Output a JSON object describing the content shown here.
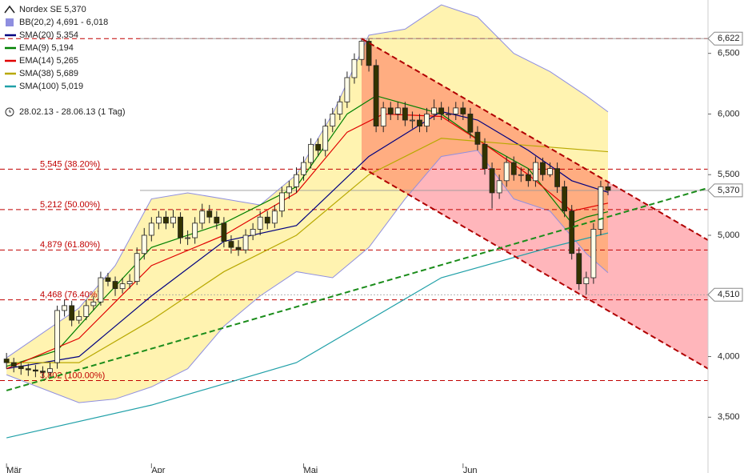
{
  "chart_data": {
    "type": "candlestick",
    "title": "Nordex SE 5,370",
    "subtitle": "28.02.13 - 28.06.13 (1 Tag)",
    "up_color": "#fffde8",
    "down_color": "#333300",
    "xlim": [
      -0.9,
      96.8
    ],
    "ylim": [
      3040,
      6940
    ],
    "xticks": [
      {
        "value": 0,
        "label": "Mär"
      },
      {
        "value": 20,
        "label": "Apr"
      },
      {
        "value": 41,
        "label": "Mai"
      },
      {
        "value": 63,
        "label": "Jun"
      }
    ],
    "yticks": [
      {
        "value": 3500,
        "label": "3,500"
      },
      {
        "value": 4000,
        "label": "4,000"
      },
      {
        "value": 5000,
        "label": "5,000"
      },
      {
        "value": 5500,
        "label": "5,500"
      },
      {
        "value": 6000,
        "label": "6,000"
      },
      {
        "value": 6500,
        "label": "6,500"
      }
    ],
    "open": [
      3980,
      3950,
      3920,
      3900,
      3890,
      3880,
      3870,
      3950,
      4380,
      4420,
      4300,
      4330,
      4420,
      4450,
      4650,
      4620,
      4560,
      4600,
      4620,
      4850,
      5000,
      5100,
      5150,
      5100,
      5150,
      4980,
      4980,
      5100,
      5200,
      5150,
      5100,
      4950,
      4900,
      4880,
      5000,
      5050,
      5150,
      5100,
      5200,
      5350,
      5400,
      5500,
      5600,
      5750,
      5700,
      5900,
      6000,
      6100,
      6300,
      6450,
      6600,
      6400,
      5900,
      6050,
      6000,
      6050,
      5950,
      5950,
      5900,
      6000,
      6050,
      6000,
      6000,
      6050,
      6000,
      5850,
      5750,
      5550,
      5350,
      5450,
      5600,
      5500,
      5500,
      5450,
      5600,
      5500,
      5550,
      5400,
      5200,
      4850,
      4600,
      4650,
      5050,
      5400
    ],
    "high": [
      4030,
      3990,
      3960,
      3940,
      3930,
      3920,
      3950,
      4420,
      4470,
      4460,
      4380,
      4470,
      4500,
      4700,
      4690,
      4660,
      4650,
      4680,
      4900,
      5060,
      5150,
      5200,
      5200,
      5210,
      5190,
      5040,
      5150,
      5260,
      5250,
      5200,
      5150,
      5000,
      4960,
      5050,
      5100,
      5200,
      5200,
      5250,
      5400,
      5450,
      5560,
      5650,
      5800,
      5800,
      5960,
      6050,
      6150,
      6350,
      6500,
      6622,
      6620,
      6450,
      6100,
      6100,
      6100,
      6100,
      6020,
      6000,
      6050,
      6120,
      6100,
      6060,
      6100,
      6100,
      6050,
      5900,
      5800,
      5600,
      5500,
      5650,
      5650,
      5560,
      5550,
      5650,
      5640,
      5600,
      5600,
      5450,
      5250,
      4900,
      4700,
      5100,
      5450,
      5430
    ],
    "low": [
      3900,
      3870,
      3850,
      3840,
      3830,
      3820,
      3820,
      3900,
      4330,
      4250,
      4270,
      4300,
      4380,
      4420,
      4580,
      4500,
      4520,
      4560,
      4590,
      4800,
      4950,
      5050,
      5050,
      5060,
      4930,
      4920,
      4930,
      5050,
      5100,
      5050,
      4900,
      4850,
      4830,
      4850,
      4960,
      5000,
      5050,
      5060,
      5150,
      5300,
      5350,
      5450,
      5550,
      5650,
      5650,
      5850,
      5950,
      6050,
      6250,
      6400,
      6350,
      5850,
      5850,
      5950,
      5950,
      5900,
      5880,
      5850,
      5850,
      5950,
      5950,
      5940,
      5950,
      5950,
      5800,
      5700,
      5500,
      5220,
      5300,
      5400,
      5450,
      5440,
      5400,
      5400,
      5450,
      5480,
      5350,
      5150,
      4800,
      4550,
      4510,
      4600,
      5000,
      5330
    ],
    "close": [
      3950,
      3920,
      3900,
      3890,
      3880,
      3870,
      3900,
      4380,
      4420,
      4300,
      4330,
      4420,
      4450,
      4650,
      4620,
      4560,
      4600,
      4620,
      4850,
      5000,
      5100,
      5150,
      5100,
      5150,
      4980,
      4980,
      5100,
      5200,
      5150,
      5100,
      4950,
      4900,
      4880,
      5000,
      5050,
      5150,
      5100,
      5200,
      5350,
      5400,
      5500,
      5600,
      5750,
      5700,
      5900,
      6000,
      6100,
      6300,
      6450,
      6600,
      6400,
      5900,
      6050,
      6000,
      6050,
      5950,
      5950,
      5900,
      6000,
      6050,
      6000,
      6000,
      6050,
      6000,
      5850,
      5750,
      5550,
      5350,
      5450,
      5600,
      5500,
      5500,
      5450,
      5600,
      5500,
      5550,
      5400,
      5200,
      4850,
      4600,
      4650,
      5050,
      5400,
      5370
    ],
    "bands": {
      "name": "BB(20,2) 4,691 - 6,018",
      "color": "#8f8fe0",
      "fill": "#fff3b0",
      "x": [
        0,
        10,
        15,
        20,
        25,
        30,
        35,
        40,
        45,
        50,
        55,
        60,
        65,
        70,
        75,
        80,
        83
      ],
      "upper": [
        3990,
        4400,
        4750,
        5300,
        5350,
        5300,
        5250,
        5500,
        6000,
        6650,
        6700,
        6900,
        6800,
        6500,
        6350,
        6150,
        6018
      ],
      "lower": [
        3850,
        3620,
        3650,
        3750,
        3900,
        4250,
        4500,
        4700,
        4650,
        4900,
        5300,
        5650,
        5700,
        5300,
        5200,
        4850,
        4691
      ]
    },
    "series": [
      {
        "name": "SMA(20) 5,354",
        "color": "#000080",
        "x": [
          0,
          10,
          20,
          30,
          40,
          50,
          60,
          65,
          72,
          78,
          83
        ],
        "values": [
          3900,
          4000,
          4500,
          4950,
          5080,
          5650,
          6020,
          5950,
          5700,
          5450,
          5354
        ]
      },
      {
        "name": "EMA(9) 5,194",
        "color": "#008000",
        "x": [
          0,
          7,
          13,
          20,
          30,
          40,
          47,
          51,
          60,
          66,
          72,
          78,
          80,
          83
        ],
        "values": [
          3920,
          4050,
          4450,
          4900,
          5100,
          5400,
          6000,
          6150,
          6000,
          5750,
          5550,
          5100,
          5150,
          5194
        ]
      },
      {
        "name": "EMA(14) 5,265",
        "color": "#e00000",
        "x": [
          0,
          10,
          20,
          30,
          40,
          47,
          52,
          60,
          66,
          72,
          78,
          83
        ],
        "values": [
          3900,
          4150,
          4750,
          5000,
          5350,
          5850,
          6000,
          5980,
          5750,
          5500,
          5200,
          5265
        ]
      },
      {
        "name": "SMA(38) 5,689",
        "color": "#b8a800",
        "x": [
          0,
          10,
          20,
          30,
          40,
          50,
          60,
          70,
          83
        ],
        "values": [
          3950,
          3950,
          4300,
          4700,
          5000,
          5500,
          5800,
          5750,
          5689
        ]
      },
      {
        "name": "SMA(100) 5,019",
        "color": "#20a0a8",
        "x": [
          0,
          20,
          40,
          60,
          75,
          83
        ],
        "values": [
          3330,
          3600,
          3950,
          4650,
          4900,
          5019
        ]
      }
    ],
    "channel": {
      "x": [
        49,
        96.8
      ],
      "upper": [
        6622,
        4960
      ],
      "lower": [
        5560,
        3900
      ],
      "color": "#b00000",
      "fill": "#ffb6bb"
    },
    "trendline": {
      "x": [
        0,
        96.8
      ],
      "values": [
        3720,
        5390
      ],
      "color": "#1a8c1a"
    },
    "levels": [
      {
        "value": 6622,
        "label": ""
      },
      {
        "value": 5545,
        "label": "5,545 (38.20%)"
      },
      {
        "value": 5212,
        "label": "5,212 (50.00%)"
      },
      {
        "value": 4879,
        "label": "4,879 (61.80%)"
      },
      {
        "value": 4468,
        "label": "4,468 (76.40%)"
      },
      {
        "value": 3802,
        "label": "3,802 (100.00%)"
      }
    ],
    "level_color": "#c00000",
    "tags": [
      {
        "value": 6622,
        "label": "6,622"
      },
      {
        "value": 5370,
        "label": "5,370"
      },
      {
        "value": 4510,
        "label": "4,510"
      }
    ]
  }
}
